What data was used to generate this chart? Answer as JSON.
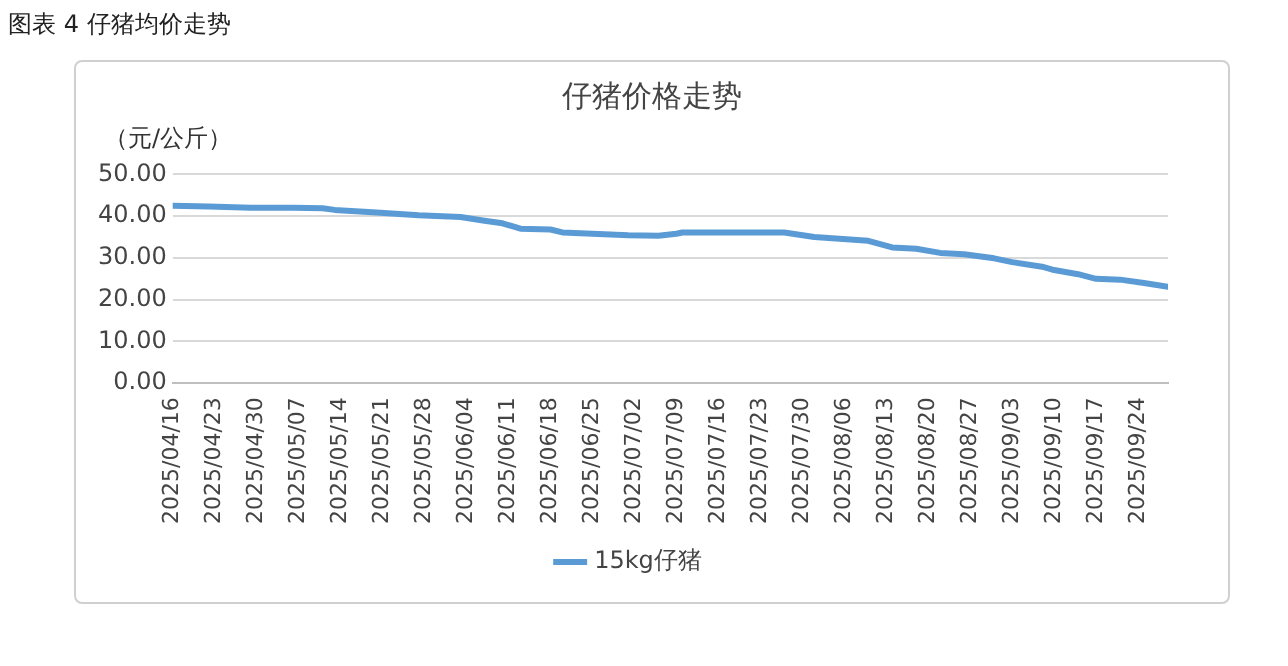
{
  "chart_data": {
    "type": "line",
    "title": "仔猪价格走势",
    "ylabel": "（元/公斤）",
    "annotations": [
      "图表 4 仔猪均价走势"
    ],
    "x": [
      "2025-04-16",
      "2025-04-22",
      "2025-04-29",
      "2025-05-06",
      "2025-05-11",
      "2025-05-13",
      "2025-05-20",
      "2025-05-27",
      "2025-06-03",
      "2025-06-07",
      "2025-06-10",
      "2025-06-13",
      "2025-06-18",
      "2025-06-20",
      "2025-06-25",
      "2025-07-01",
      "2025-07-06",
      "2025-07-09",
      "2025-07-10",
      "2025-07-27",
      "2025-08-01",
      "2025-08-04",
      "2025-08-10",
      "2025-08-14",
      "2025-08-18",
      "2025-08-22",
      "2025-08-26",
      "2025-08-31",
      "2025-09-03",
      "2025-09-08",
      "2025-09-10",
      "2025-09-14",
      "2025-09-17",
      "2025-09-21",
      "2025-09-25",
      "2025-09-29"
    ],
    "series": [
      {
        "name": "15kg仔猪",
        "color": "#5b9bd5",
        "values": [
          42.5,
          42.3,
          42.0,
          42.0,
          41.9,
          41.5,
          40.9,
          40.2,
          39.8,
          38.9,
          38.3,
          37.0,
          36.8,
          36.1,
          35.8,
          35.4,
          35.3,
          35.8,
          36.1,
          36.1,
          35.0,
          34.7,
          34.1,
          32.5,
          32.2,
          31.2,
          30.9,
          29.9,
          29.0,
          27.9,
          27.1,
          26.1,
          25.0,
          24.8,
          24.0,
          23.1
        ]
      }
    ],
    "xlim": [
      "2025-04-16",
      "2025-09-29"
    ],
    "xticks": [
      {
        "value": "2025-04-16",
        "label": "2025/04/16"
      },
      {
        "value": "2025-04-23",
        "label": "2025/04/23"
      },
      {
        "value": "2025-04-30",
        "label": "2025/04/30"
      },
      {
        "value": "2025-05-07",
        "label": "2025/05/07"
      },
      {
        "value": "2025-05-14",
        "label": "2025/05/14"
      },
      {
        "value": "2025-05-21",
        "label": "2025/05/21"
      },
      {
        "value": "2025-05-28",
        "label": "2025/05/28"
      },
      {
        "value": "2025-06-04",
        "label": "2025/06/04"
      },
      {
        "value": "2025-06-11",
        "label": "2025/06/11"
      },
      {
        "value": "2025-06-18",
        "label": "2025/06/18"
      },
      {
        "value": "2025-06-25",
        "label": "2025/06/25"
      },
      {
        "value": "2025-07-02",
        "label": "2025/07/02"
      },
      {
        "value": "2025-07-09",
        "label": "2025/07/09"
      },
      {
        "value": "2025-07-16",
        "label": "2025/07/16"
      },
      {
        "value": "2025-07-23",
        "label": "2025/07/23"
      },
      {
        "value": "2025-07-30",
        "label": "2025/07/30"
      },
      {
        "value": "2025-08-06",
        "label": "2025/08/06"
      },
      {
        "value": "2025-08-13",
        "label": "2025/08/13"
      },
      {
        "value": "2025-08-20",
        "label": "2025/08/20"
      },
      {
        "value": "2025-08-27",
        "label": "2025/08/27"
      },
      {
        "value": "2025-09-03",
        "label": "2025/09/03"
      },
      {
        "value": "2025-09-10",
        "label": "2025/09/10"
      },
      {
        "value": "2025-09-17",
        "label": "2025/09/17"
      },
      {
        "value": "2025-09-24",
        "label": "2025/09/24"
      }
    ],
    "ylim": [
      0,
      50
    ],
    "yticks": [
      {
        "value": 0,
        "label": "0.00"
      },
      {
        "value": 10,
        "label": "10.00"
      },
      {
        "value": 20,
        "label": "20.00"
      },
      {
        "value": 30,
        "label": "30.00"
      },
      {
        "value": 40,
        "label": "40.00"
      },
      {
        "value": 50,
        "label": "50.00"
      }
    ],
    "grid": "y",
    "legend": "bottom",
    "marker": "none",
    "line_style": "solid"
  }
}
